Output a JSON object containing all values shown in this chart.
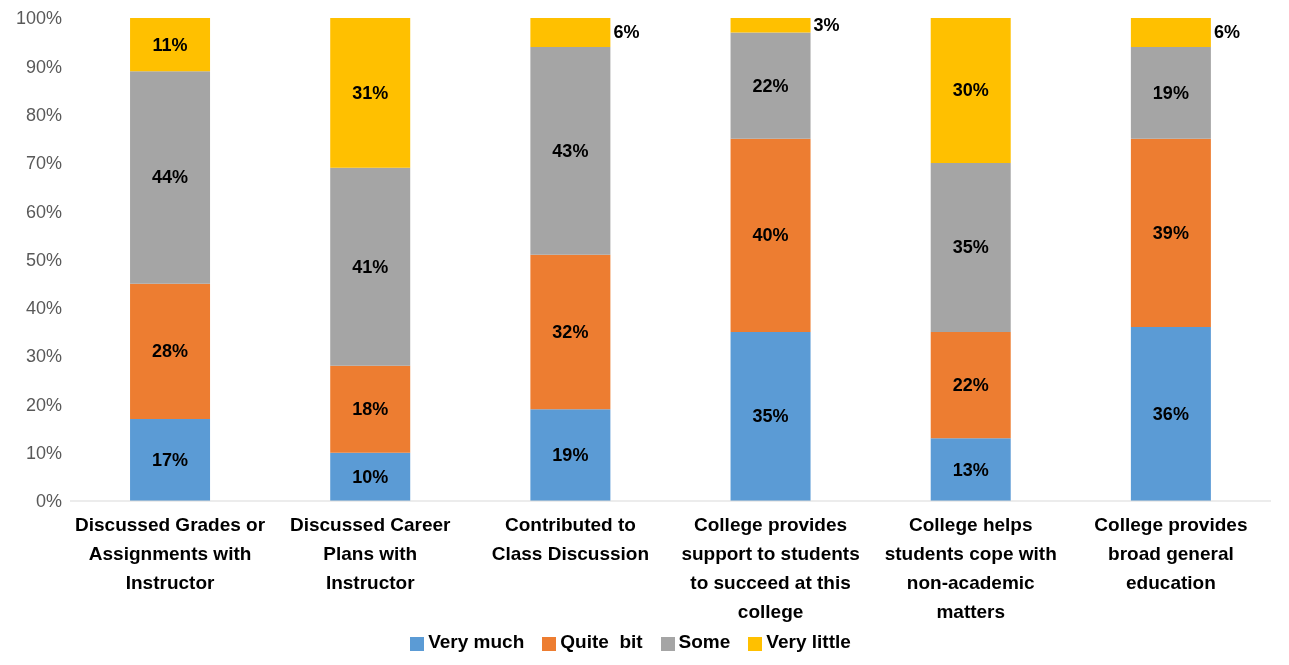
{
  "chart_data": {
    "type": "bar",
    "stacked": true,
    "categories": [
      "Discussed Grades or Assignments with Instructor",
      "Discussed Career Plans with Instructor",
      "Contributed to Class Discussion",
      "College provides support to students to succeed at this college",
      "College helps students cope with non-academic matters",
      "College provides broad general education"
    ],
    "series": [
      {
        "name": "Very much",
        "color": "#5b9bd5",
        "values": [
          17,
          10,
          19,
          35,
          13,
          36
        ],
        "value_labels": [
          "17%",
          "10%",
          "19%",
          "35%",
          "13%",
          "36%"
        ]
      },
      {
        "name": "Quite  bit",
        "color": "#ed7d31",
        "values": [
          28,
          18,
          32,
          40,
          22,
          39
        ],
        "value_labels": [
          "28%",
          "18%",
          "32%",
          "40%",
          "22%",
          "39%"
        ]
      },
      {
        "name": "Some",
        "color": "#a5a5a5",
        "values": [
          44,
          41,
          43,
          22,
          35,
          19
        ],
        "value_labels": [
          "44%",
          "41%",
          "43%",
          "22%",
          "35%",
          "19%"
        ]
      },
      {
        "name": "Very little",
        "color": "#ffc000",
        "values": [
          11,
          31,
          6,
          3,
          30,
          6
        ],
        "value_labels": [
          "11%",
          "31%",
          "6%",
          "3%",
          "30%",
          "6%"
        ]
      }
    ],
    "ylim": [
      0,
      100
    ],
    "yticks": [
      {
        "value": 0,
        "label": "0%"
      },
      {
        "value": 10,
        "label": "10%"
      },
      {
        "value": 20,
        "label": "20%"
      },
      {
        "value": 30,
        "label": "30%"
      },
      {
        "value": 40,
        "label": "40%"
      },
      {
        "value": 50,
        "label": "50%"
      },
      {
        "value": 60,
        "label": "60%"
      },
      {
        "value": 70,
        "label": "70%"
      },
      {
        "value": 80,
        "label": "80%"
      },
      {
        "value": 90,
        "label": "90%"
      },
      {
        "value": 100,
        "label": "100%"
      }
    ],
    "grid": false,
    "legend": "bottom"
  }
}
